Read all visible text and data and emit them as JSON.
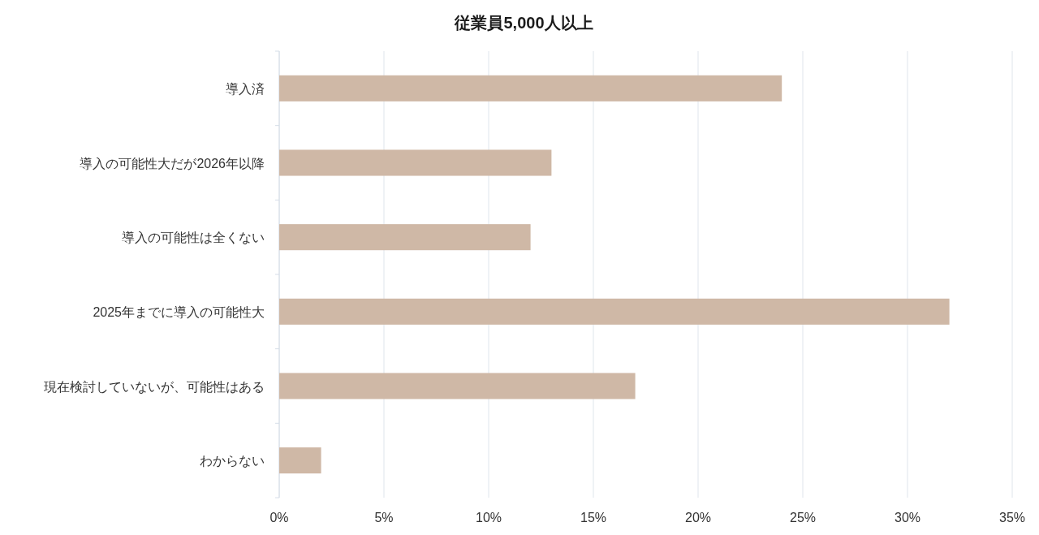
{
  "chart_data": {
    "type": "bar",
    "orientation": "horizontal",
    "title": "従業員5,000人以上",
    "categories": [
      "導入済",
      "導入の可能性大だが2026年以降",
      "導入の可能性は全くない",
      "2025年までに導入の可能性大",
      "現在検討していないが、可能性はある",
      "わからない"
    ],
    "values": [
      24,
      13,
      12,
      32,
      17,
      2
    ],
    "color": "#cfb8a6",
    "xlim": [
      0,
      35
    ],
    "xticks": [
      {
        "value": 0,
        "label": "0%"
      },
      {
        "value": 5,
        "label": "5%"
      },
      {
        "value": 10,
        "label": "10%"
      },
      {
        "value": 15,
        "label": "15%"
      },
      {
        "value": 20,
        "label": "20%"
      },
      {
        "value": 25,
        "label": "25%"
      },
      {
        "value": 30,
        "label": "30%"
      },
      {
        "value": 35,
        "label": "35%"
      }
    ],
    "grid": "x"
  }
}
